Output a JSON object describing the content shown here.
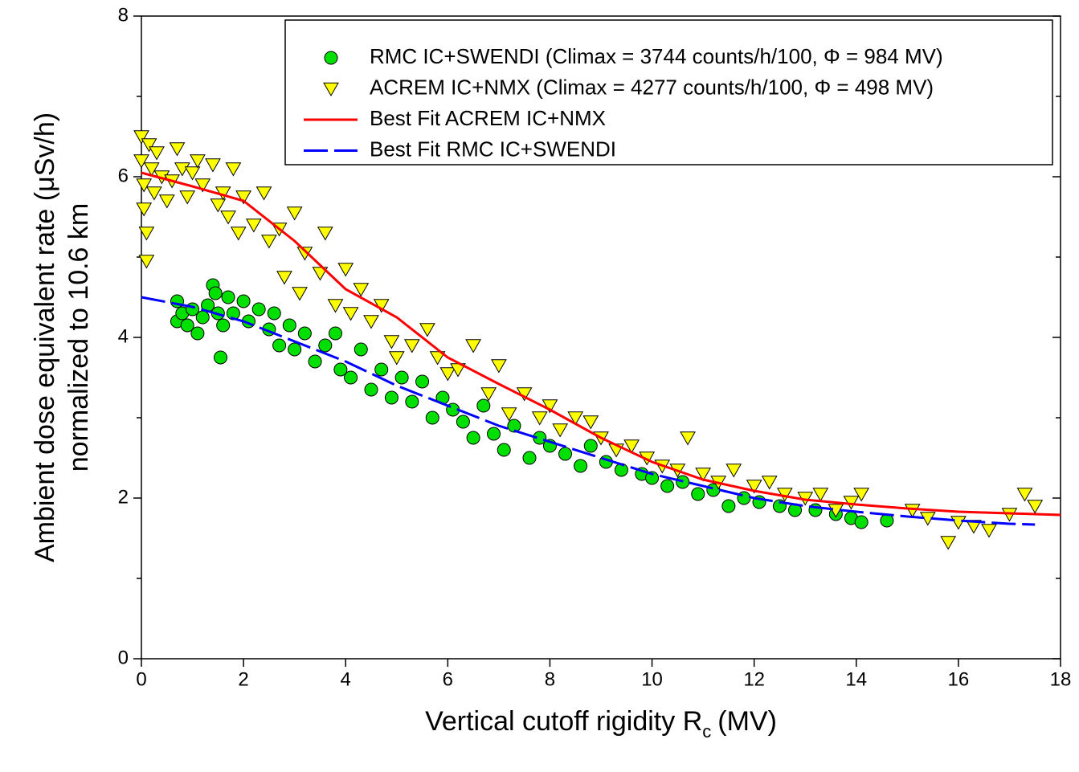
{
  "chart_data": {
    "type": "scatter",
    "ylabel": [
      "Ambient dose equivalent rate (μSv/h)",
      "normalized to 10.6 km"
    ],
    "xlabel": {
      "text": "Vertical cutoff rigidity R",
      "sub": "c",
      "after": "(MV)"
    },
    "xlim": [
      0,
      18
    ],
    "ylim": [
      0,
      8
    ],
    "xticks": [
      0,
      2,
      4,
      6,
      8,
      10,
      12,
      14,
      16,
      18
    ],
    "yticks": [
      0,
      2,
      4,
      6,
      8
    ],
    "yminor_ticks": [
      1,
      3,
      5,
      7
    ],
    "legend": "upper right",
    "series": [
      {
        "name": "RMC IC+SWENDI (Climax = 3744 counts/h/100, Φ = 984 MV)",
        "kind": "scatter",
        "marker": "circle",
        "color": "#00e000",
        "x": [
          0.7,
          0.7,
          0.8,
          0.9,
          1.0,
          1.1,
          1.2,
          1.3,
          1.4,
          1.45,
          1.5,
          1.55,
          1.6,
          1.7,
          1.8,
          2.0,
          2.1,
          2.3,
          2.5,
          2.6,
          2.7,
          2.9,
          3.0,
          3.2,
          3.4,
          3.6,
          3.8,
          3.9,
          4.1,
          4.3,
          4.5,
          4.7,
          4.9,
          5.1,
          5.3,
          5.5,
          5.7,
          5.9,
          6.1,
          6.3,
          6.5,
          6.7,
          6.9,
          7.1,
          7.3,
          7.6,
          7.8,
          8.0,
          8.3,
          8.6,
          8.8,
          9.1,
          9.4,
          9.8,
          10.0,
          10.3,
          10.6,
          10.9,
          11.2,
          11.5,
          11.8,
          12.1,
          12.5,
          12.8,
          13.2,
          13.6,
          13.9,
          14.1,
          14.6
        ],
        "values": [
          4.45,
          4.2,
          4.3,
          4.15,
          4.35,
          4.05,
          4.25,
          4.4,
          4.65,
          4.55,
          4.3,
          3.75,
          4.15,
          4.5,
          4.3,
          4.45,
          4.2,
          4.35,
          4.1,
          4.3,
          3.9,
          4.15,
          3.85,
          4.05,
          3.7,
          3.9,
          4.05,
          3.6,
          3.5,
          3.85,
          3.35,
          3.6,
          3.25,
          3.5,
          3.2,
          3.45,
          3.0,
          3.25,
          3.1,
          2.95,
          2.75,
          3.15,
          2.8,
          2.6,
          2.9,
          2.5,
          2.75,
          2.65,
          2.55,
          2.4,
          2.65,
          2.45,
          2.35,
          2.3,
          2.25,
          2.15,
          2.2,
          2.05,
          2.1,
          1.9,
          2.0,
          1.95,
          1.9,
          1.85,
          1.85,
          1.8,
          1.75,
          1.7,
          1.72
        ]
      },
      {
        "name": "ACREM IC+NMX (Climax = 4277 counts/h/100, Φ = 498 MV)",
        "kind": "scatter",
        "marker": "triangle-down",
        "color": "#ffff00",
        "x": [
          0.0,
          0.0,
          0.05,
          0.05,
          0.1,
          0.1,
          0.15,
          0.2,
          0.25,
          0.3,
          0.4,
          0.5,
          0.6,
          0.7,
          0.8,
          0.9,
          1.0,
          1.1,
          1.2,
          1.4,
          1.5,
          1.6,
          1.7,
          1.8,
          1.9,
          2.0,
          2.2,
          2.4,
          2.5,
          2.7,
          2.8,
          3.0,
          3.1,
          3.2,
          3.5,
          3.6,
          3.8,
          4.0,
          4.1,
          4.3,
          4.5,
          4.7,
          4.9,
          5.0,
          5.3,
          5.6,
          5.8,
          6.0,
          6.2,
          6.5,
          6.8,
          7.0,
          7.2,
          7.5,
          7.8,
          8.0,
          8.2,
          8.5,
          8.8,
          9.0,
          9.3,
          9.6,
          9.9,
          10.2,
          10.5,
          10.7,
          11.0,
          11.3,
          11.6,
          12.0,
          12.3,
          12.6,
          13.0,
          13.3,
          13.6,
          13.9,
          14.1,
          15.1,
          15.4,
          15.8,
          16.0,
          16.3,
          16.6,
          17.0,
          17.3,
          17.5
        ],
        "values": [
          6.5,
          6.2,
          5.9,
          5.6,
          5.3,
          4.95,
          6.4,
          6.1,
          5.8,
          6.3,
          6.0,
          5.7,
          5.95,
          6.35,
          6.1,
          5.75,
          6.05,
          6.2,
          5.9,
          6.15,
          5.65,
          5.8,
          5.5,
          6.1,
          5.3,
          5.75,
          5.4,
          5.8,
          5.2,
          5.35,
          4.75,
          5.55,
          4.55,
          5.05,
          4.8,
          5.3,
          4.4,
          4.85,
          4.3,
          4.6,
          4.2,
          4.4,
          3.95,
          3.75,
          3.9,
          4.1,
          3.75,
          3.55,
          3.6,
          3.9,
          3.3,
          3.65,
          3.05,
          3.3,
          3.0,
          3.15,
          2.85,
          3.0,
          2.95,
          2.75,
          2.6,
          2.65,
          2.5,
          2.4,
          2.35,
          2.75,
          2.3,
          2.2,
          2.35,
          2.15,
          2.2,
          2.05,
          2.0,
          2.05,
          1.85,
          1.95,
          2.05,
          1.85,
          1.75,
          1.45,
          1.7,
          1.65,
          1.6,
          1.8,
          2.05,
          1.9
        ]
      },
      {
        "name": "Best Fit ACREM IC+NMX",
        "kind": "line",
        "color": "#ff0000",
        "x": [
          0,
          1,
          2,
          3,
          4,
          5,
          6,
          7,
          8,
          9,
          10,
          11,
          12,
          13,
          14,
          15,
          16,
          17,
          18
        ],
        "values": [
          6.05,
          5.88,
          5.7,
          5.2,
          4.6,
          4.25,
          3.75,
          3.42,
          3.1,
          2.75,
          2.45,
          2.23,
          2.09,
          1.98,
          1.92,
          1.87,
          1.83,
          1.81,
          1.79
        ]
      },
      {
        "name": "Best Fit RMC IC+SWENDI",
        "kind": "line",
        "dashed": true,
        "color": "#0000ff",
        "x": [
          0,
          1,
          2,
          3,
          4,
          5,
          6,
          7,
          8,
          9,
          10,
          11,
          12,
          13,
          14,
          15,
          16,
          17,
          17.5
        ],
        "values": [
          4.5,
          4.38,
          4.2,
          3.95,
          3.7,
          3.4,
          3.15,
          2.9,
          2.7,
          2.5,
          2.3,
          2.15,
          2.0,
          1.9,
          1.83,
          1.77,
          1.72,
          1.68,
          1.67
        ]
      }
    ]
  }
}
